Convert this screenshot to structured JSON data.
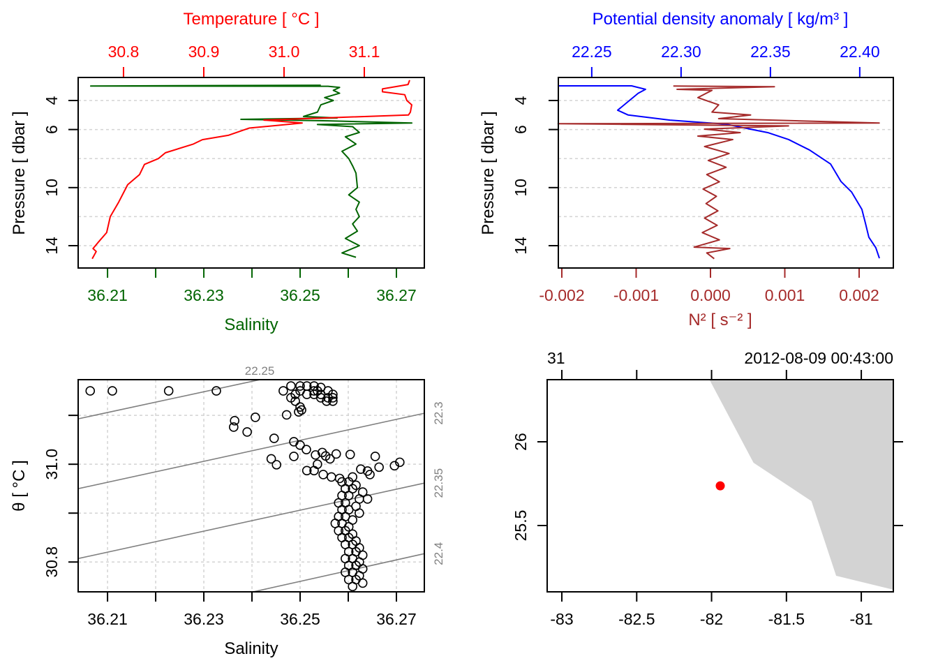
{
  "colors": {
    "temperature": "#ff0000",
    "salinity": "#006400",
    "density": "#0000ff",
    "n2": "#a52a2a",
    "isopycnal": "#808080",
    "land": "#d3d3d3",
    "station": "#ff0000",
    "grid": "#d3d3d3"
  },
  "chart_data": [
    {
      "type": "line",
      "panel": "profile-temperature-salinity",
      "title": "Temperature [ °C ]",
      "xlabel": "Salinity",
      "ylabel": "Pressure [ dbar ]",
      "ylim": [
        15.54,
        2.41
      ],
      "y_ticks": [
        "4",
        "6",
        "10",
        "14"
      ],
      "y_grid": [
        4,
        6,
        8,
        10,
        12,
        14
      ],
      "grid": true,
      "top_axis": {
        "label": "Temperature [ °C ]",
        "range": [
          30.7435,
          31.1748
        ],
        "ticks": [
          "30.8",
          "30.9",
          "31.0",
          "31.1"
        ]
      },
      "bottom_axis": {
        "label": "Salinity",
        "range": [
          36.2039,
          36.2758
        ],
        "ticks": [
          "36.21",
          "36.23",
          "36.25",
          "36.27"
        ],
        "minor_ticks": [
          36.22,
          36.24,
          36.26
        ]
      },
      "series": [
        {
          "variable": "temperature",
          "axis": "top",
          "points": [
            [
              31.1565,
              2.6
            ],
            [
              31.1545,
              2.9
            ],
            [
              31.1226,
              3.2
            ],
            [
              31.1226,
              3.4
            ],
            [
              31.1504,
              3.6
            ],
            [
              31.153,
              4.0
            ],
            [
              31.1591,
              4.3
            ],
            [
              31.1574,
              4.8
            ],
            [
              31.155,
              5.0
            ],
            [
              31.05,
              5.2
            ],
            [
              30.9748,
              5.35
            ],
            [
              31.0226,
              5.55
            ],
            [
              30.9565,
              5.9
            ],
            [
              30.9305,
              6.4
            ],
            [
              30.8983,
              6.7
            ],
            [
              30.887,
              7.0
            ],
            [
              30.8522,
              7.6
            ],
            [
              30.8435,
              8.0
            ],
            [
              30.8261,
              8.4
            ],
            [
              30.82,
              9.1
            ],
            [
              30.8052,
              9.8
            ],
            [
              30.794,
              11.0
            ],
            [
              30.7835,
              12.0
            ],
            [
              30.779,
              13.1
            ],
            [
              30.768,
              13.8
            ],
            [
              30.762,
              14.2
            ],
            [
              30.766,
              14.4
            ],
            [
              30.761,
              14.9
            ]
          ]
        },
        {
          "variable": "salinity",
          "axis": "bottom",
          "points": [
            [
              36.2543,
              2.95
            ],
            [
              36.2065,
              3.0
            ],
            [
              36.2558,
              3.02
            ],
            [
              36.2582,
              3.1
            ],
            [
              36.2569,
              3.3
            ],
            [
              36.2582,
              3.5
            ],
            [
              36.2551,
              3.8
            ],
            [
              36.2569,
              4.0
            ],
            [
              36.2543,
              4.3
            ],
            [
              36.2536,
              4.8
            ],
            [
              36.2507,
              5.1
            ],
            [
              36.2577,
              5.2
            ],
            [
              36.2377,
              5.3
            ],
            [
              36.2558,
              5.4
            ],
            [
              36.2732,
              5.55
            ],
            [
              36.2536,
              5.65
            ],
            [
              36.2609,
              5.8
            ],
            [
              36.2623,
              6.2
            ],
            [
              36.2594,
              6.5
            ],
            [
              36.2616,
              7.0
            ],
            [
              36.2587,
              7.5
            ],
            [
              36.2601,
              8.0
            ],
            [
              36.2609,
              8.5
            ],
            [
              36.2616,
              9.0
            ],
            [
              36.2619,
              10.0
            ],
            [
              36.2601,
              10.5
            ],
            [
              36.2623,
              11.0
            ],
            [
              36.2616,
              11.5
            ],
            [
              36.2623,
              12.0
            ],
            [
              36.2609,
              12.5
            ],
            [
              36.2619,
              13.0
            ],
            [
              36.2594,
              13.5
            ],
            [
              36.2623,
              14.0
            ],
            [
              36.2587,
              14.5
            ],
            [
              36.2616,
              14.8
            ]
          ]
        }
      ]
    },
    {
      "type": "line",
      "panel": "profile-density-n2",
      "title": "Potential density anomaly [ kg/m³ ]",
      "xlabel": "N² [ s⁻² ]",
      "ylabel": "Pressure [ dbar ]",
      "ylim": [
        15.54,
        2.41
      ],
      "y_ticks": [
        "4",
        "6",
        "10",
        "14"
      ],
      "grid": true,
      "top_axis": {
        "label": "Potential density anomaly [ kg/m³ ]",
        "range": [
          22.2313,
          22.4188
        ],
        "ticks": [
          "22.25",
          "22.30",
          "22.35",
          "22.40"
        ]
      },
      "bottom_axis": {
        "label": "N² [ s⁻² ]",
        "range": [
          -0.002047,
          0.00246
        ],
        "ticks": [
          "-0.002",
          "-0.001",
          "0.000",
          "0.001",
          "0.002"
        ]
      },
      "series": [
        {
          "variable": "density",
          "axis": "top",
          "points": [
            [
              22.2313,
              2.99
            ],
            [
              22.2723,
              2.99
            ],
            [
              22.2801,
              3.23
            ],
            [
              22.276,
              3.5
            ],
            [
              22.2645,
              4.67
            ],
            [
              22.2704,
              5.0
            ],
            [
              22.2938,
              5.35
            ],
            [
              22.325,
              5.63
            ],
            [
              22.3387,
              5.97
            ],
            [
              22.3485,
              6.21
            ],
            [
              22.3602,
              6.69
            ],
            [
              22.3719,
              7.41
            ],
            [
              22.3837,
              8.38
            ],
            [
              22.3895,
              9.58
            ],
            [
              22.3954,
              10.3
            ],
            [
              22.4012,
              11.5
            ],
            [
              22.4032,
              12.46
            ],
            [
              22.4051,
              13.42
            ],
            [
              22.409,
              14.14
            ],
            [
              22.411,
              14.87
            ]
          ]
        },
        {
          "variable": "n2",
          "axis": "bottom",
          "points": [
            [
              -0.0005,
              3.0
            ],
            [
              0.00086,
              3.05
            ],
            [
              -0.00045,
              3.23
            ],
            [
              2e-05,
              3.3
            ],
            [
              -0.00017,
              3.8
            ],
            [
              0.00011,
              4.3
            ],
            [
              2e-05,
              4.8
            ],
            [
              0.00054,
              5.0
            ],
            [
              0.00011,
              5.25
            ],
            [
              0.00227,
              5.55
            ],
            [
              -0.00205,
              5.6
            ],
            [
              0.00105,
              5.75
            ],
            [
              -8e-05,
              5.97
            ],
            [
              0.0004,
              6.21
            ],
            [
              -0.00017,
              6.45
            ],
            [
              0.0003,
              6.69
            ],
            [
              -8e-05,
              7.17
            ],
            [
              0.00025,
              7.65
            ],
            [
              -3e-05,
              8.13
            ],
            [
              0.00021,
              8.6
            ],
            [
              -5e-05,
              9.1
            ],
            [
              0.00012,
              9.6
            ],
            [
              -0.0001,
              10.1
            ],
            [
              8e-05,
              10.6
            ],
            [
              -6e-05,
              11.1
            ],
            [
              0.0001,
              11.6
            ],
            [
              -8e-05,
              12.1
            ],
            [
              9e-05,
              12.6
            ],
            [
              -0.00011,
              13.1
            ],
            [
              0.00012,
              13.6
            ],
            [
              -0.00022,
              14.1
            ],
            [
              0.00026,
              14.2
            ],
            [
              -5e-05,
              14.5
            ],
            [
              5e-05,
              14.9
            ]
          ]
        }
      ]
    },
    {
      "type": "scatter",
      "panel": "ts-diagram",
      "xlabel": "Salinity",
      "ylabel": "θ [ °C ]",
      "xlim": [
        36.2039,
        36.2758
      ],
      "ylim": [
        30.739,
        31.173
      ],
      "x_ticks": [
        "36.21",
        "36.23",
        "36.25",
        "36.27"
      ],
      "y_ticks": [
        "31.0",
        "30.8"
      ],
      "grid": true,
      "isopycnals": [
        {
          "label": "22.25",
          "points": [
            [
              36.2039,
              31.0929
            ],
            [
              36.2416,
              31.1729
            ]
          ]
        },
        {
          "label": "22.3",
          "points": [
            [
              36.2039,
              30.95
            ],
            [
              36.2758,
              31.1043
            ]
          ]
        },
        {
          "label": "22.35",
          "points": [
            [
              36.2039,
              30.8071
            ],
            [
              36.2758,
              30.9614
            ]
          ]
        },
        {
          "label": "22.4",
          "points": [
            [
              36.2401,
              30.7386
            ],
            [
              36.2758,
              30.8171
            ]
          ]
        }
      ],
      "points": [
        [
          36.2064,
          31.15
        ],
        [
          36.211,
          31.15
        ],
        [
          36.2227,
          31.15
        ],
        [
          36.2326,
          31.15
        ],
        [
          36.2465,
          31.15
        ],
        [
          36.2481,
          31.16
        ],
        [
          36.25,
          31.16
        ],
        [
          36.2514,
          31.16
        ],
        [
          36.2529,
          31.16
        ],
        [
          36.2543,
          31.157
        ],
        [
          36.2558,
          31.15
        ],
        [
          36.2568,
          31.143
        ],
        [
          36.25,
          31.15
        ],
        [
          36.2514,
          31.143
        ],
        [
          36.2529,
          31.143
        ],
        [
          36.2543,
          31.136
        ],
        [
          36.2558,
          31.136
        ],
        [
          36.2568,
          31.136
        ],
        [
          36.2568,
          31.129
        ],
        [
          36.2481,
          31.136
        ],
        [
          36.249,
          31.129
        ],
        [
          36.25,
          31.117
        ],
        [
          36.2503,
          31.111
        ],
        [
          36.2497,
          31.107
        ],
        [
          36.2529,
          31.15
        ],
        [
          36.2543,
          31.143
        ],
        [
          36.2555,
          31.129
        ],
        [
          36.2536,
          31.15
        ],
        [
          36.249,
          31.143
        ],
        [
          36.2472,
          31.101
        ],
        [
          36.2364,
          31.089
        ],
        [
          36.2362,
          31.076
        ],
        [
          36.2407,
          31.096
        ],
        [
          36.239,
          31.066
        ],
        [
          36.2446,
          31.053
        ],
        [
          36.244,
          31.011
        ],
        [
          36.2451,
          30.999
        ],
        [
          36.2487,
          31.046
        ],
        [
          36.25,
          31.039
        ],
        [
          36.2513,
          31.03
        ],
        [
          36.2487,
          31.016
        ],
        [
          36.2532,
          31.019
        ],
        [
          36.2546,
          31.024
        ],
        [
          36.2553,
          31.017
        ],
        [
          36.2562,
          31.011
        ],
        [
          36.2575,
          31.021
        ],
        [
          36.2604,
          31.02
        ],
        [
          36.2656,
          31.016
        ],
        [
          36.2664,
          30.994
        ],
        [
          36.2626,
          30.99
        ],
        [
          36.264,
          30.986
        ],
        [
          36.2645,
          30.979
        ],
        [
          36.2696,
          30.997
        ],
        [
          36.2707,
          31.004
        ],
        [
          36.2514,
          30.987
        ],
        [
          36.2529,
          30.987
        ],
        [
          36.2536,
          31.0
        ],
        [
          36.2548,
          30.979
        ],
        [
          36.2565,
          30.974
        ],
        [
          36.2582,
          30.971
        ],
        [
          36.2609,
          30.974
        ],
        [
          36.2587,
          30.964
        ],
        [
          36.2601,
          30.964
        ],
        [
          36.2616,
          30.957
        ],
        [
          36.2594,
          30.95
        ],
        [
          36.2609,
          30.95
        ],
        [
          36.263,
          30.943
        ],
        [
          36.2587,
          30.936
        ],
        [
          36.2601,
          30.936
        ],
        [
          36.2623,
          30.929
        ],
        [
          36.264,
          30.929
        ],
        [
          36.258,
          30.921
        ],
        [
          36.2594,
          30.921
        ],
        [
          36.2616,
          30.914
        ],
        [
          36.2587,
          30.907
        ],
        [
          36.2601,
          30.907
        ],
        [
          36.2623,
          30.9
        ],
        [
          36.258,
          30.893
        ],
        [
          36.2594,
          30.893
        ],
        [
          36.2609,
          30.886
        ],
        [
          36.2573,
          30.879
        ],
        [
          36.2587,
          30.879
        ],
        [
          36.2601,
          30.872
        ],
        [
          36.258,
          30.864
        ],
        [
          36.2594,
          30.864
        ],
        [
          36.2609,
          30.857
        ],
        [
          36.2587,
          30.85
        ],
        [
          36.2601,
          30.85
        ],
        [
          36.2616,
          30.843
        ],
        [
          36.2594,
          30.836
        ],
        [
          36.2609,
          30.836
        ],
        [
          36.2623,
          30.829
        ],
        [
          36.2601,
          30.821
        ],
        [
          36.2616,
          30.821
        ],
        [
          36.263,
          30.814
        ],
        [
          36.2594,
          30.807
        ],
        [
          36.2609,
          30.807
        ],
        [
          36.2623,
          30.8
        ],
        [
          36.2601,
          30.793
        ],
        [
          36.2616,
          30.793
        ],
        [
          36.263,
          30.786
        ],
        [
          36.2594,
          30.779
        ],
        [
          36.2609,
          30.779
        ],
        [
          36.2623,
          30.772
        ],
        [
          36.2601,
          30.764
        ],
        [
          36.2616,
          30.764
        ],
        [
          36.263,
          30.757
        ],
        [
          36.2609,
          30.75
        ]
      ]
    },
    {
      "type": "map",
      "panel": "station-map",
      "xlim": [
        -83.098,
        -80.786
      ],
      "ylim": [
        25.104,
        26.371
      ],
      "x_ticks": [
        "-83",
        "-82.5",
        "-82",
        "-81.5",
        "-81"
      ],
      "y_ticks": [
        "26",
        "25.5"
      ],
      "top_left_label": "31",
      "top_right_label": "2012-08-09 00:43:00",
      "land": [
        [
          -82.014,
          26.371
        ],
        [
          -81.72,
          25.875
        ],
        [
          -81.333,
          25.646
        ],
        [
          -81.168,
          25.2
        ],
        [
          -80.786,
          25.117
        ],
        [
          -80.786,
          26.371
        ]
      ],
      "station": [
        -81.942,
        25.737
      ]
    }
  ]
}
